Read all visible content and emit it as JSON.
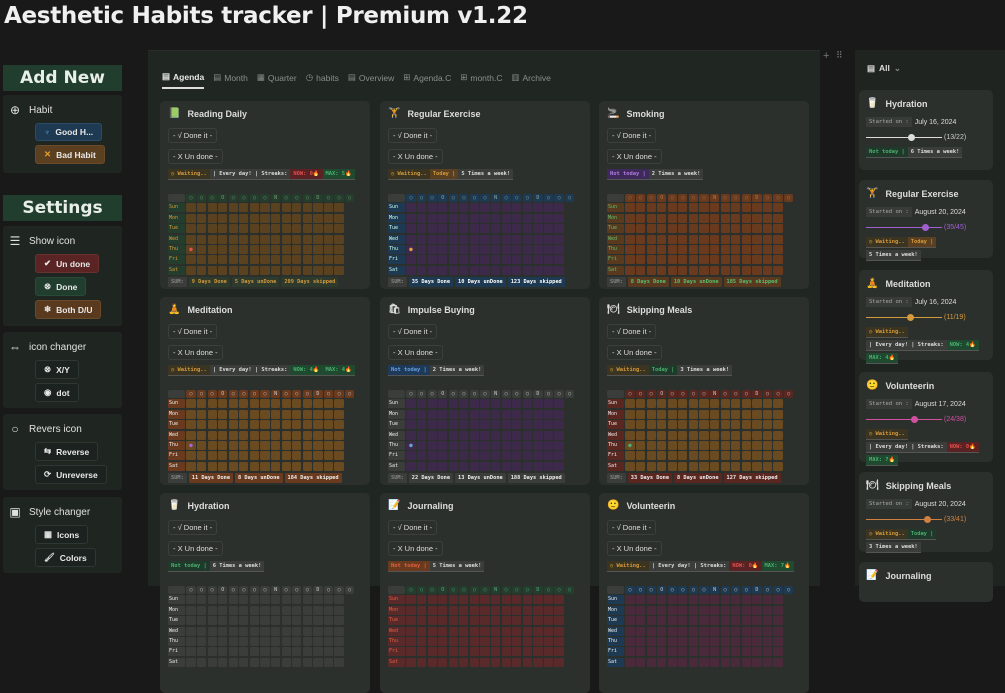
{
  "title": "Aesthetic Habits tracker | Premium v1.22",
  "sidebar": {
    "add_new": "Add New",
    "habit_label": "Habit",
    "good_habit": "Good H...",
    "bad_habit": "Bad Habit",
    "settings": "Settings",
    "show_icon": "Show icon",
    "un_done": "Un done",
    "done": "Done",
    "both": "Both D/U",
    "icon_changer": "icon changer",
    "xy": "X/Y",
    "dot": "dot",
    "revers_icon": "Revers icon",
    "reverse": "Reverse",
    "unreverse": "Unreverse",
    "style_changer": "Style changer",
    "icons": "Icons",
    "colors": "Colors"
  },
  "tabs": [
    {
      "label": "Agenda",
      "icon": "calendar-icon",
      "active": true
    },
    {
      "label": "Month",
      "icon": "calendar-icon"
    },
    {
      "label": "Quarter",
      "icon": "calendar-grid-icon"
    },
    {
      "label": "habits",
      "icon": "clock-icon"
    },
    {
      "label": "Overview",
      "icon": "calendar-icon"
    },
    {
      "label": "Agenda.C",
      "icon": "table-icon"
    },
    {
      "label": "month.C",
      "icon": "table-icon"
    },
    {
      "label": "Archive",
      "icon": "archive-icon"
    }
  ],
  "done_label": "- √ Done it -",
  "undone_label": "- X Un done -",
  "days": [
    "Sun",
    "Mon",
    "Tue",
    "Wed",
    "Thu",
    "Fri",
    "Sat"
  ],
  "sum_label": "SUM:",
  "header_marks": [
    "○",
    "○",
    "○",
    "O",
    "○",
    "○",
    "○",
    "○",
    "N",
    "○",
    "○",
    "○",
    "D",
    "○",
    "○",
    "○"
  ],
  "cards": [
    {
      "name": "Reading Daily",
      "icon": "📗",
      "icon_name": "book-icon",
      "tags": [
        {
          "t": "◷ Waiting..",
          "c": "#d59a3c",
          "b": "#3a3420"
        },
        {
          "t": "| Every day! | Streaks:",
          "c": "#ddd",
          "b": "#3a3d3a"
        },
        {
          "t": "NOW: 0🔥",
          "c": "#e05050",
          "b": "#5a2222"
        },
        {
          "t": "MAX: 5🔥",
          "c": "#4caf70",
          "b": "#1f4a30"
        }
      ],
      "sums": [
        "9 Days Done",
        "5 Days unDone",
        "209 Days skipped"
      ],
      "theme": {
        "chip": "#243d2c",
        "ct": "#7a9a7a",
        "lab": "#243d2c",
        "lt": "#d59a3c",
        "cell": "#5a4220",
        "sum": "#2d3a2c",
        "st": "#d59a3c",
        "mark": "#e05050"
      }
    },
    {
      "name": "Regular Exercise",
      "icon": "🏋",
      "icon_name": "dumbbell-icon",
      "tags": [
        {
          "t": "◷ Waiting..",
          "c": "#d59a3c",
          "b": "#3a3420"
        },
        {
          "t": "Today |",
          "c": "#d59a3c",
          "b": "#5a4020"
        },
        {
          "t": "5 Times a week!",
          "c": "#ddd",
          "b": "#3a3d3a"
        }
      ],
      "sums": [
        "35 Days Done",
        "10 Days unDone",
        "123 Days skipped"
      ],
      "theme": {
        "chip": "#1e3a52",
        "ct": "#8aa",
        "lab": "#1e3a52",
        "lt": "#cfe",
        "cell": "#3d2a4a",
        "sum": "#1e3a52",
        "st": "#fff",
        "mark": "#e0a040"
      }
    },
    {
      "name": "Smoking",
      "icon": "🚬",
      "icon_name": "smoking-icon",
      "tags": [
        {
          "t": "Not today |",
          "c": "#b07ae0",
          "b": "#3e2a5a"
        },
        {
          "t": "2 Times a week!",
          "c": "#ddd",
          "b": "#3a3d3a"
        }
      ],
      "sums": [
        "8 Days Done",
        "10 Days unDone",
        "185 Days skipped"
      ],
      "theme": {
        "chip": "#6a3a1e",
        "ct": "#b07a50",
        "lab": "#5a3a1e",
        "lt": "#5cbf70",
        "cell": "#6a3a1e",
        "sum": "#5a3a1e",
        "st": "#5cbf70",
        "mark": null
      }
    },
    {
      "name": "Meditation",
      "icon": "🧘",
      "icon_name": "meditation-icon",
      "tags": [
        {
          "t": "◷ Waiting..",
          "c": "#d59a3c",
          "b": "#3a3420"
        },
        {
          "t": "| Every day! | Streaks:",
          "c": "#ddd",
          "b": "#3a3d3a"
        },
        {
          "t": "NOW: 4🔥",
          "c": "#4caf70",
          "b": "#1f4a30"
        },
        {
          "t": "MAX: 4🔥",
          "c": "#4caf70",
          "b": "#1f4a30"
        }
      ],
      "sums": [
        "11 Days Done",
        "8 Days unDone",
        "184 Days skipped"
      ],
      "theme": {
        "chip": "#6a3a1e",
        "ct": "#ccc",
        "lab": "#6a3a1e",
        "lt": "#eee",
        "cell": "#6a4a20",
        "sum": "#6a3a1e",
        "st": "#eee",
        "mark": "#b060e0"
      }
    },
    {
      "name": "Impulse Buying",
      "icon": "🛍",
      "icon_name": "shopping-icon",
      "tags": [
        {
          "t": "Not today |",
          "c": "#6aa0e0",
          "b": "#1e3a5a"
        },
        {
          "t": "2 Times a week!",
          "c": "#ddd",
          "b": "#3a3d3a"
        }
      ],
      "sums": [
        "22 Days Done",
        "13 Days unDone",
        "188 Days skipped"
      ],
      "theme": {
        "chip": "#3a3d3a",
        "ct": "#ccc",
        "lab": "#3a3d3a",
        "lt": "#eee",
        "cell": "#3d2a4a",
        "sum": "#3a3d3a",
        "st": "#eee",
        "mark": "#6aa0e0"
      }
    },
    {
      "name": "Skipping Meals",
      "icon": "🍽",
      "icon_name": "meal-icon",
      "tags": [
        {
          "t": "◷ Waiting..",
          "c": "#d59a3c",
          "b": "#3a3420"
        },
        {
          "t": "Today |",
          "c": "#4caf70",
          "b": "#1f3a2a"
        },
        {
          "t": "3 Times a week!",
          "c": "#ddd",
          "b": "#3a3d3a"
        }
      ],
      "sums": [
        "33 Days Done",
        "8 Days unDone",
        "127 Days skipped"
      ],
      "theme": {
        "chip": "#5a2620",
        "ct": "#ccc",
        "lab": "#5a2620",
        "lt": "#eee",
        "cell": "#6a4a20",
        "sum": "#5a2620",
        "st": "#eee",
        "mark": "#4caf70"
      }
    },
    {
      "name": "Hydration",
      "icon": "🥛",
      "icon_name": "glass-icon",
      "tags": [
        {
          "t": "Not today |",
          "c": "#4caf70",
          "b": "#1f3a2a"
        },
        {
          "t": "6 Times a week!",
          "c": "#ddd",
          "b": "#3a3d3a"
        }
      ],
      "sums": [],
      "theme": {
        "chip": "#3a3d3a",
        "ct": "#ccc",
        "lab": "#3a3d3a",
        "lt": "#eee",
        "cell": "#3a3d3a",
        "sum": "#3a3d3a",
        "st": "#eee",
        "mark": null
      }
    },
    {
      "name": "Journaling",
      "icon": "📝",
      "icon_name": "pencil-icon",
      "tags": [
        {
          "t": "Not today |",
          "c": "#e06040",
          "b": "#6a3a1e"
        },
        {
          "t": "5 Times a week!",
          "c": "#ddd",
          "b": "#3a3d3a"
        }
      ],
      "sums": [],
      "theme": {
        "chip": "#243d2c",
        "ct": "#5a8",
        "lab": "#5a2a2a",
        "lt": "#e06040",
        "cell": "#5a2a2a",
        "sum": "#5a2a2a",
        "st": "#eee",
        "mark": null
      }
    },
    {
      "name": "Volunteerin",
      "icon": "🙂",
      "icon_name": "smiley-icon",
      "tags": [
        {
          "t": "◷ Waiting..",
          "c": "#d59a3c",
          "b": "#3a3420"
        },
        {
          "t": "| Every day! | Streaks:",
          "c": "#ddd",
          "b": "#3a3d3a"
        },
        {
          "t": "NOW: 0🔥",
          "c": "#e05050",
          "b": "#5a2222"
        },
        {
          "t": "MAX: 7🔥",
          "c": "#4caf70",
          "b": "#1f4a30"
        }
      ],
      "sums": [],
      "theme": {
        "chip": "#1e3a52",
        "ct": "#ccc",
        "lab": "#1e3a52",
        "lt": "#eee",
        "cell": "#4a2a3a",
        "sum": "#1e3a52",
        "st": "#eee",
        "mark": null
      }
    }
  ],
  "right": {
    "filter": "All",
    "started_label": "Started on :",
    "cards": [
      {
        "name": "Hydration",
        "icon": "🥛",
        "icon_name": "glass-icon",
        "date": "July 16, 2024",
        "done": 13,
        "total": 22,
        "progress": "(13/22)",
        "color": "#dddddd",
        "tcolor": "#cccccc",
        "tags": [
          {
            "t": "Not today |",
            "c": "#4caf70",
            "b": "#1f3a2a"
          },
          {
            "t": "6 Times a week!",
            "c": "#ddd",
            "b": "#3a3d3a"
          }
        ]
      },
      {
        "name": "Regular Exercise",
        "icon": "🏋",
        "icon_name": "dumbbell-icon",
        "date": "August 20, 2024",
        "done": 35,
        "total": 45,
        "progress": "(35/45)",
        "color": "#a060d0",
        "tcolor": "#a060d0",
        "tags": [
          {
            "t": "◷ Waiting..",
            "c": "#d59a3c",
            "b": "#3a3420"
          },
          {
            "t": "Today |",
            "c": "#d59a3c",
            "b": "#5a4020"
          },
          {
            "t": "5 Times a week!",
            "c": "#ddd",
            "b": "#3a3d3a"
          }
        ]
      },
      {
        "name": "Meditation",
        "icon": "🧘",
        "icon_name": "meditation-icon",
        "date": "July 16, 2024",
        "done": 11,
        "total": 19,
        "progress": "(11/19)",
        "color": "#d59a3c",
        "tcolor": "#d59a3c",
        "tags": [
          {
            "t": "◷ Waiting..",
            "c": "#d59a3c",
            "b": "#3a3420"
          },
          {
            "t": "| Every day! | Streaks:",
            "c": "#ddd",
            "b": "#3a3d3a"
          },
          {
            "t": "NOW: 4🔥",
            "c": "#4caf70",
            "b": "#1f4a30"
          },
          {
            "t": "MAX: 4🔥",
            "c": "#4caf70",
            "b": "#1f4a30"
          }
        ]
      },
      {
        "name": "Volunteerin",
        "icon": "🙂",
        "icon_name": "smiley-icon",
        "date": "August 17, 2024",
        "done": 24,
        "total": 38,
        "progress": "(24/38)",
        "color": "#d050a0",
        "tcolor": "#d050a0",
        "tags": [
          {
            "t": "◷ Waiting..",
            "c": "#d59a3c",
            "b": "#3a3420"
          },
          {
            "t": "| Every day! | Streaks:",
            "c": "#ddd",
            "b": "#3a3d3a"
          },
          {
            "t": "NOW: 0🔥",
            "c": "#e05050",
            "b": "#5a2222"
          },
          {
            "t": "MAX: 7🔥",
            "c": "#4caf70",
            "b": "#1f4a30"
          }
        ]
      },
      {
        "name": "Skipping Meals",
        "icon": "🍽",
        "icon_name": "meal-icon",
        "date": "August 20, 2024",
        "done": 33,
        "total": 41,
        "progress": "(33/41)",
        "color": "#d08040",
        "tcolor": "#d08040",
        "tags": [
          {
            "t": "◷ Waiting..",
            "c": "#d59a3c",
            "b": "#3a3420"
          },
          {
            "t": "Today |",
            "c": "#4caf70",
            "b": "#1f3a2a"
          },
          {
            "t": "3 Times a week!",
            "c": "#ddd",
            "b": "#3a3d3a"
          }
        ]
      },
      {
        "name": "Journaling",
        "icon": "📝",
        "icon_name": "pencil-icon",
        "tags": []
      }
    ]
  }
}
